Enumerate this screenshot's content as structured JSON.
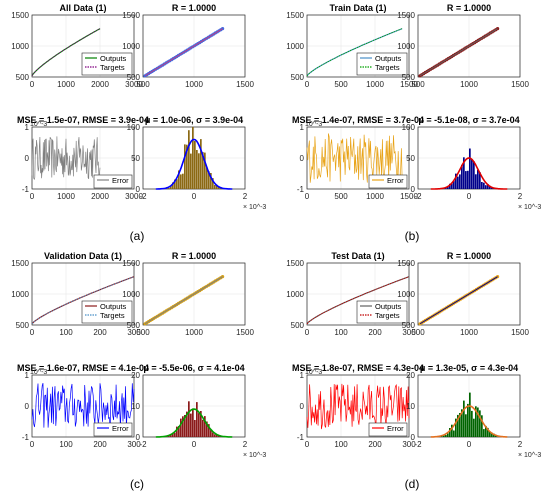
{
  "panels": [
    {
      "caption": "(a)",
      "fit": {
        "type": "line",
        "title": "All Data (1)",
        "xlim": [
          0,
          3000
        ],
        "ylim": [
          500,
          1500
        ],
        "xticks": [
          "0",
          "1000",
          "2000",
          "3000"
        ],
        "yticks": [
          "500",
          "1000",
          "1500"
        ],
        "x_end": 2000,
        "y_start": 520,
        "y_end": 1280,
        "legend": [
          "Outputs",
          "Targets"
        ],
        "series_colors": [
          "#008000",
          "#800080"
        ]
      },
      "regression": {
        "type": "scatter",
        "title": "R = 1.0000",
        "xlim": [
          500,
          1500
        ],
        "ylim": [
          500,
          1500
        ],
        "xticks": [
          "500",
          "1000",
          "1500"
        ],
        "yticks": [
          "500",
          "1000",
          "1500"
        ],
        "line_start": 520,
        "line_end": 1280,
        "point_color": "#4169e1",
        "line_color": "#c04080"
      },
      "error": {
        "type": "line",
        "title": "MSE = 1.5e-07,  RMSE = 3.9e-04",
        "exponent_label": "10^-3",
        "xlim": [
          0,
          3000
        ],
        "ylim": [
          -1,
          1
        ],
        "xticks": [
          "0",
          "1000",
          "2000",
          "3000"
        ],
        "yticks": [
          "-1",
          "0",
          "1"
        ],
        "x_end": 2000,
        "amplitude": 0.7,
        "legend": [
          "Error"
        ],
        "color": "#808080"
      },
      "histogram": {
        "type": "bar",
        "title": "μ = 1.0e-06,  σ = 3.9e-04",
        "xlim": [
          -2,
          2
        ],
        "ylim": [
          0,
          100
        ],
        "xticks": [
          "-2",
          "0",
          "2"
        ],
        "yticks": [
          "0",
          "50",
          "100"
        ],
        "multiplier_label": "× 10^-3",
        "mu": 0.001,
        "sigma": 0.39,
        "peak": 80,
        "bar_color": "#8b6914",
        "curve_color": "#0000ff"
      }
    },
    {
      "caption": "(b)",
      "fit": {
        "type": "line",
        "title": "Train Data (1)",
        "xlim": [
          0,
          1500
        ],
        "ylim": [
          500,
          1500
        ],
        "xticks": [
          "0",
          "500",
          "1000",
          "1500"
        ],
        "yticks": [
          "500",
          "1000",
          "1500"
        ],
        "x_end": 1400,
        "y_start": 520,
        "y_end": 1280,
        "legend": [
          "Outputs",
          "Targets"
        ],
        "series_colors": [
          "#4a90c8",
          "#00a000"
        ]
      },
      "regression": {
        "type": "scatter",
        "title": "R = 1.0000",
        "xlim": [
          500,
          1500
        ],
        "ylim": [
          500,
          1500
        ],
        "xticks": [
          "500",
          "1000",
          "1500"
        ],
        "yticks": [
          "500",
          "1000",
          "1500"
        ],
        "line_start": 520,
        "line_end": 1280,
        "point_color": "#8b1a1a",
        "line_color": "#606060"
      },
      "error": {
        "type": "line",
        "title": "MSE = 1.4e-07,  RMSE = 3.7e-04",
        "exponent_label": "10^-3",
        "xlim": [
          0,
          1500
        ],
        "ylim": [
          -1,
          1
        ],
        "xticks": [
          "0",
          "500",
          "1000",
          "1500"
        ],
        "yticks": [
          "-1",
          "0",
          "1"
        ],
        "x_end": 1400,
        "amplitude": 0.8,
        "legend": [
          "Error"
        ],
        "color": "#e8a317"
      },
      "histogram": {
        "type": "bar",
        "title": "μ = -5.1e-08,  σ = 3.7e-04",
        "xlim": [
          -2,
          2
        ],
        "ylim": [
          0,
          100
        ],
        "xticks": [
          "-2",
          "0",
          "2"
        ],
        "yticks": [
          "0",
          "50",
          "100"
        ],
        "multiplier_label": "× 10^-3",
        "mu": 0.0,
        "sigma": 0.37,
        "peak": 50,
        "bar_color": "#00008b",
        "curve_color": "#e00000"
      }
    },
    {
      "caption": "(c)",
      "fit": {
        "type": "line",
        "title": "Validation Data (1)",
        "xlim": [
          0,
          300
        ],
        "ylim": [
          500,
          1500
        ],
        "xticks": [
          "0",
          "100",
          "200",
          "300"
        ],
        "yticks": [
          "500",
          "1000",
          "1500"
        ],
        "x_end": 300,
        "y_start": 520,
        "y_end": 1280,
        "legend": [
          "Outputs",
          "Targets"
        ],
        "series_colors": [
          "#8b1a1a",
          "#4a90c8"
        ]
      },
      "regression": {
        "type": "scatter",
        "title": "R = 1.0000",
        "xlim": [
          500,
          1500
        ],
        "ylim": [
          500,
          1500
        ],
        "xticks": [
          "500",
          "1000",
          "1500"
        ],
        "yticks": [
          "500",
          "1000",
          "1500"
        ],
        "line_start": 520,
        "line_end": 1280,
        "point_color": "#d4a017",
        "line_color": "#808080"
      },
      "error": {
        "type": "line",
        "title": "MSE = 1.6e-07,  RMSE = 4.1e-04",
        "exponent_label": "10^-3",
        "xlim": [
          0,
          300
        ],
        "ylim": [
          -1,
          1
        ],
        "xticks": [
          "0",
          "100",
          "200",
          "300"
        ],
        "yticks": [
          "-1",
          "0",
          "1"
        ],
        "x_end": 300,
        "amplitude": 0.75,
        "legend": [
          "Error"
        ],
        "color": "#0000ff"
      },
      "histogram": {
        "type": "bar",
        "title": "μ = -5.5e-06,  σ = 4.1e-04",
        "xlim": [
          -2,
          2
        ],
        "ylim": [
          0,
          20
        ],
        "xticks": [
          "-2",
          "0",
          "2"
        ],
        "yticks": [
          "0",
          "10",
          "20"
        ],
        "multiplier_label": "× 10^-3",
        "mu": -0.005,
        "sigma": 0.41,
        "peak": 9,
        "bar_color": "#8b1a1a",
        "curve_color": "#00a000"
      }
    },
    {
      "caption": "(d)",
      "fit": {
        "type": "line",
        "title": "Test Data (1)",
        "xlim": [
          0,
          300
        ],
        "ylim": [
          500,
          1500
        ],
        "xticks": [
          "0",
          "100",
          "200",
          "300"
        ],
        "yticks": [
          "500",
          "1000",
          "1500"
        ],
        "x_end": 300,
        "y_start": 520,
        "y_end": 1280,
        "legend": [
          "Outputs",
          "Targets"
        ],
        "series_colors": [
          "#606060",
          "#c00000"
        ]
      },
      "regression": {
        "type": "scatter",
        "title": "R = 1.0000",
        "xlim": [
          500,
          1500
        ],
        "ylim": [
          500,
          1500
        ],
        "xticks": [
          "500",
          "1000",
          "1500"
        ],
        "yticks": [
          "500",
          "1000",
          "1500"
        ],
        "line_start": 520,
        "line_end": 1280,
        "point_color": "#e8a317",
        "line_color": "#00008b"
      },
      "error": {
        "type": "line",
        "title": "MSE = 1.8e-07,  RMSE = 4.3e-04",
        "exponent_label": "10^-3",
        "xlim": [
          0,
          300
        ],
        "ylim": [
          -1,
          1
        ],
        "xticks": [
          "0",
          "100",
          "200",
          "300"
        ],
        "yticks": [
          "-1",
          "0",
          "1"
        ],
        "x_end": 300,
        "amplitude": 0.75,
        "legend": [
          "Error"
        ],
        "color": "#ff0000"
      },
      "histogram": {
        "type": "bar",
        "title": "μ = 1.3e-05,  σ = 4.3e-04",
        "xlim": [
          -2,
          2
        ],
        "ylim": [
          0,
          20
        ],
        "xticks": [
          "-2",
          "0",
          "2"
        ],
        "yticks": [
          "0",
          "10",
          "20"
        ],
        "multiplier_label": "× 10^-3",
        "mu": 0.013,
        "sigma": 0.43,
        "peak": 10,
        "bar_color": "#006400",
        "curve_color": "#e07020"
      }
    }
  ]
}
